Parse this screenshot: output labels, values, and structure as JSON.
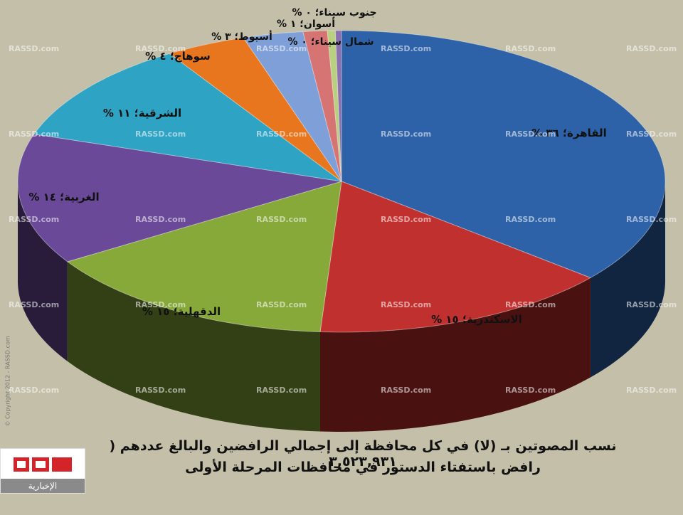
{
  "chart_data": {
    "type": "pie",
    "title_lines": [
      "نسب المصوتين بـ (لا) في كل محافظة إلى إجمالي الرافضين والبالغ عددهم ( ٣,٥٢٣,٩٣١",
      "رافض باستفتاء الدستور في محافظات المرحلة الأولى"
    ],
    "slices": [
      {
        "label": "القاهرة؛ ٣٦ %",
        "value": 36,
        "color": "#2e62a8"
      },
      {
        "label": "الاسكندرية؛ ١٥ %",
        "value": 15,
        "color": "#c0302e"
      },
      {
        "label": "الدقهلية؛ ١٥ %",
        "value": 15,
        "color": "#86a93a"
      },
      {
        "label": "الغربية؛ ١٤ %",
        "value": 14,
        "color": "#6a4a98"
      },
      {
        "label": "الشرقية؛ ١١ %",
        "value": 11,
        "color": "#2ea3c4"
      },
      {
        "label": "سوهاج؛ ٤ %",
        "value": 4,
        "color": "#e8761e"
      },
      {
        "label": "أسيوط؛ ٣ %",
        "value": 3,
        "color": "#7e9fd8"
      },
      {
        "label": "أسوان؛ ١ %",
        "value": 1.2,
        "color": "#d67474"
      },
      {
        "label": "جنوب سيناء؛ ٠ %",
        "value": 0.4,
        "color": "#b8d080"
      },
      {
        "label": "شمال سيناء؛ ٠ %",
        "value": 0.3,
        "color": "#8a70b0"
      }
    ],
    "style": "3d-tilted"
  },
  "watermark": "RASSD.com",
  "logo": {
    "subtitle": "الإخبارية"
  },
  "copyright": "© Copyright 2012 - RASSD.com"
}
